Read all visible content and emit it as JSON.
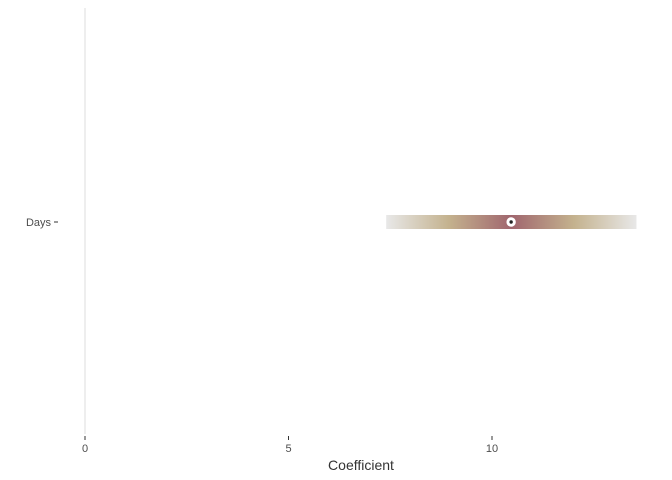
{
  "chart_data": {
    "type": "coefficient_plot",
    "xlabel": "Coefficient",
    "ylabel": "",
    "xlim": [
      -0.3,
      13.6
    ],
    "x_ticks": [
      0,
      5,
      10
    ],
    "x_tick_labels": [
      "0",
      "5",
      "10"
    ],
    "zero_line": 0,
    "grid": false,
    "legend": "none",
    "series": [
      {
        "term": "Days",
        "estimate": 10.47,
        "interval_low": 7.4,
        "interval_high": 13.55
      }
    ],
    "colors": {
      "band_center": "#a0666e",
      "band_mid": "#c4b28e",
      "band_edge": "#e8e8e8",
      "point_fill": "#ffffff",
      "point_core": "#222222",
      "zero_line": "#dddddd"
    }
  }
}
